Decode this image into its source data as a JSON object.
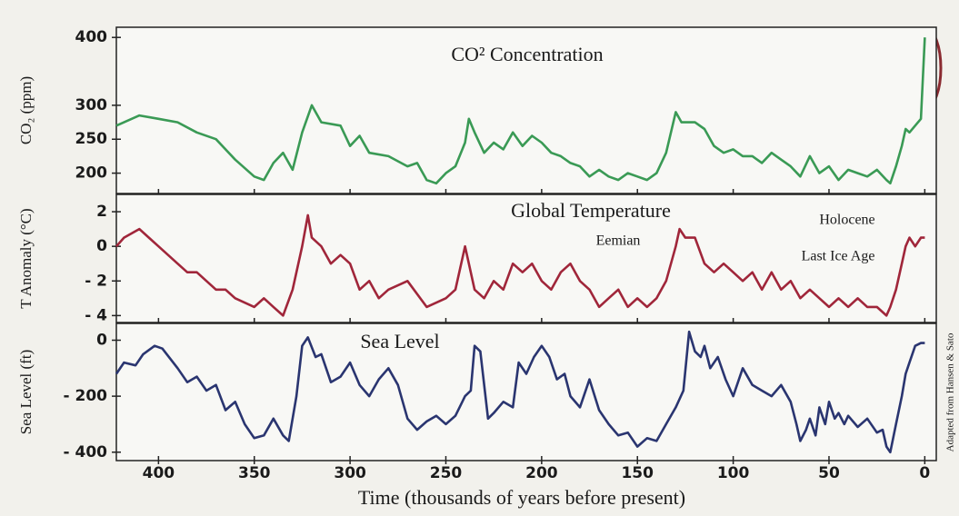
{
  "chart_data": [
    {
      "type": "line",
      "title": "CO² Concentration",
      "y_label": "CO₂ (ppm)",
      "color": "#3a9a55",
      "xlim": [
        422,
        -6
      ],
      "ylim": [
        170,
        415
      ],
      "yticks": [
        200,
        250,
        300,
        400
      ],
      "x": [
        422,
        410,
        400,
        390,
        380,
        370,
        360,
        350,
        345,
        340,
        335,
        330,
        325,
        320,
        315,
        305,
        300,
        295,
        290,
        280,
        270,
        265,
        260,
        255,
        250,
        245,
        240,
        238,
        235,
        230,
        225,
        220,
        215,
        210,
        205,
        200,
        195,
        190,
        185,
        180,
        175,
        170,
        165,
        160,
        155,
        150,
        145,
        140,
        135,
        130,
        127,
        120,
        115,
        110,
        105,
        100,
        95,
        90,
        85,
        80,
        75,
        70,
        65,
        60,
        55,
        50,
        45,
        40,
        35,
        30,
        25,
        20,
        18,
        15,
        12,
        10,
        8,
        5,
        2,
        0
      ],
      "values": [
        270,
        285,
        280,
        275,
        260,
        250,
        220,
        195,
        190,
        215,
        230,
        205,
        260,
        300,
        275,
        270,
        240,
        255,
        230,
        225,
        210,
        215,
        190,
        185,
        200,
        210,
        245,
        280,
        260,
        230,
        245,
        235,
        260,
        240,
        255,
        245,
        230,
        225,
        215,
        210,
        195,
        205,
        195,
        190,
        200,
        195,
        190,
        200,
        230,
        290,
        275,
        275,
        265,
        240,
        230,
        235,
        225,
        225,
        215,
        230,
        220,
        210,
        195,
        225,
        200,
        210,
        190,
        205,
        200,
        195,
        205,
        190,
        185,
        210,
        240,
        265,
        260,
        270,
        280,
        400
      ]
    },
    {
      "type": "line",
      "title": "Global Temperature",
      "y_label": "T Anomaly (°C)",
      "color": "#a0263a",
      "xlim": [
        422,
        -6
      ],
      "ylim": [
        -4.4,
        3
      ],
      "yticks": [
        2,
        0,
        {
          "value": -2,
          "label": "- 2"
        },
        {
          "value": -4,
          "label": "- 4"
        }
      ],
      "annotations": [
        "Eemian",
        "Last Ice Age",
        "Holocene"
      ],
      "x": [
        422,
        418,
        410,
        405,
        400,
        395,
        390,
        385,
        380,
        375,
        370,
        365,
        360,
        350,
        345,
        340,
        335,
        330,
        325,
        322,
        320,
        315,
        310,
        305,
        300,
        295,
        290,
        285,
        280,
        270,
        260,
        250,
        245,
        240,
        238,
        235,
        230,
        225,
        220,
        215,
        210,
        205,
        200,
        195,
        190,
        185,
        180,
        175,
        170,
        165,
        160,
        155,
        150,
        145,
        140,
        135,
        130,
        128,
        125,
        120,
        115,
        110,
        105,
        100,
        95,
        90,
        85,
        80,
        75,
        70,
        65,
        60,
        55,
        50,
        45,
        40,
        35,
        30,
        25,
        20,
        18,
        15,
        12,
        10,
        8,
        5,
        2,
        0
      ],
      "values": [
        0,
        0.5,
        1,
        0.5,
        0,
        -0.5,
        -1,
        -1.5,
        -1.5,
        -2,
        -2.5,
        -2.5,
        -3,
        -3.5,
        -3,
        -3.5,
        -4,
        -2.5,
        0,
        1.8,
        0.5,
        0,
        -1,
        -0.5,
        -1,
        -2.5,
        -2,
        -3,
        -2.5,
        -2,
        -3.5,
        -3,
        -2.5,
        0,
        -1,
        -2.5,
        -3,
        -2,
        -2.5,
        -1,
        -1.5,
        -1,
        -2,
        -2.5,
        -1.5,
        -1,
        -2,
        -2.5,
        -3.5,
        -3,
        -2.5,
        -3.5,
        -3,
        -3.5,
        -3,
        -2,
        0,
        1,
        0.5,
        0.5,
        -1,
        -1.5,
        -1,
        -1.5,
        -2,
        -1.5,
        -2.5,
        -1.5,
        -2.5,
        -2,
        -3,
        -2.5,
        -3,
        -3.5,
        -3,
        -3.5,
        -3,
        -3.5,
        -3.5,
        -4,
        -3.5,
        -2.5,
        -1,
        0,
        0.5,
        0,
        0.5,
        0.5
      ]
    },
    {
      "type": "line",
      "title": "Sea Level",
      "y_label": "Sea Level (ft)",
      "color": "#2a3570",
      "xlim": [
        422,
        -6
      ],
      "ylim": [
        -430,
        60
      ],
      "yticks": [
        0,
        {
          "value": -200,
          "label": "- 200"
        },
        {
          "value": -400,
          "label": "- 400"
        }
      ],
      "x_label": "Time (thousands of years before present)",
      "xticks": [
        400,
        350,
        300,
        250,
        200,
        150,
        100,
        50,
        0
      ],
      "x": [
        422,
        418,
        412,
        408,
        402,
        398,
        390,
        385,
        380,
        375,
        370,
        365,
        360,
        355,
        350,
        345,
        340,
        335,
        332,
        328,
        325,
        322,
        318,
        315,
        310,
        305,
        300,
        295,
        290,
        285,
        280,
        275,
        270,
        265,
        260,
        255,
        250,
        245,
        240,
        237,
        235,
        232,
        228,
        225,
        220,
        215,
        212,
        208,
        204,
        200,
        196,
        192,
        188,
        185,
        180,
        175,
        170,
        165,
        160,
        155,
        150,
        145,
        140,
        135,
        130,
        126,
        123,
        120,
        117,
        115,
        112,
        108,
        104,
        100,
        95,
        90,
        85,
        80,
        75,
        70,
        67,
        65,
        62,
        60,
        57,
        55,
        52,
        50,
        47,
        45,
        42,
        40,
        35,
        30,
        25,
        22,
        20,
        18,
        15,
        12,
        10,
        8,
        5,
        2,
        0
      ],
      "values": [
        -120,
        -80,
        -90,
        -50,
        -20,
        -30,
        -100,
        -150,
        -130,
        -180,
        -160,
        -250,
        -220,
        -300,
        -350,
        -340,
        -280,
        -340,
        -360,
        -200,
        -20,
        10,
        -60,
        -50,
        -150,
        -130,
        -80,
        -160,
        -200,
        -140,
        -100,
        -160,
        -280,
        -320,
        -290,
        -270,
        -300,
        -270,
        -200,
        -180,
        -20,
        -40,
        -280,
        -260,
        -220,
        -240,
        -80,
        -120,
        -60,
        -20,
        -60,
        -140,
        -120,
        -200,
        -240,
        -140,
        -250,
        -300,
        -340,
        -330,
        -380,
        -350,
        -360,
        -300,
        -240,
        -180,
        30,
        -40,
        -60,
        -20,
        -100,
        -60,
        -140,
        -200,
        -100,
        -160,
        -180,
        -200,
        -160,
        -220,
        -300,
        -360,
        -320,
        -280,
        -340,
        -240,
        -300,
        -220,
        -280,
        -260,
        -300,
        -270,
        -310,
        -280,
        -330,
        -320,
        -380,
        -400,
        -300,
        -200,
        -120,
        -80,
        -20,
        -10,
        -10
      ]
    }
  ],
  "source": "Adapted from Hansen & Sato"
}
